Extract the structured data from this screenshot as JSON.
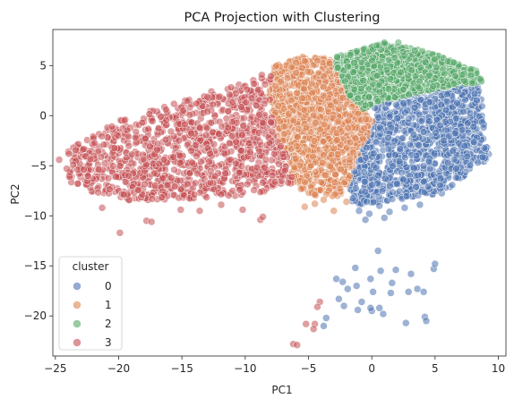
{
  "chart_data": {
    "type": "scatter",
    "title": "PCA Projection with Clustering",
    "xlabel": "PC1",
    "ylabel": "PC2",
    "xlim": [
      -25.2,
      10.6
    ],
    "ylim": [
      -24.0,
      8.6
    ],
    "xticks": [
      -25,
      -20,
      -15,
      -10,
      -5,
      0,
      5,
      10
    ],
    "yticks": [
      5,
      0,
      -5,
      -10,
      -15,
      -20
    ],
    "grid": false,
    "legend": {
      "title": "cluster",
      "placement": "lower-left"
    },
    "series": [
      {
        "name": "0",
        "color": "#4c72b0",
        "region": [
          [
            0.2,
            1.6
          ],
          [
            6.5,
            3.2
          ],
          [
            8.5,
            3.0
          ],
          [
            9.3,
            -4.2
          ],
          [
            5.5,
            -7.8
          ],
          [
            3.0,
            -8.2
          ],
          [
            -1.5,
            -9.0
          ],
          [
            -1.8,
            -7.0
          ],
          [
            -0.5,
            -2.5
          ],
          [
            0.2,
            -0.5
          ]
        ],
        "outliers": [
          [
            -1.0,
            -9.5
          ],
          [
            -0.2,
            -9.8
          ],
          [
            0.6,
            -9.0
          ],
          [
            1.4,
            -9.6
          ],
          [
            2.6,
            -9.2
          ],
          [
            3.8,
            -8.9
          ],
          [
            -0.5,
            -10.4
          ],
          [
            1.0,
            -10.2
          ],
          [
            0.5,
            -13.5
          ],
          [
            -1.3,
            -15.2
          ],
          [
            0.7,
            -15.5
          ],
          [
            -0.1,
            -16.3
          ],
          [
            1.9,
            -15.4
          ],
          [
            1.6,
            -16.7
          ],
          [
            3.1,
            -15.8
          ],
          [
            4.9,
            -15.3
          ],
          [
            5.0,
            -14.8
          ],
          [
            -2.3,
            -16.6
          ],
          [
            -2.8,
            -16.3
          ],
          [
            -1.9,
            -17.3
          ],
          [
            -1.2,
            -17.0
          ],
          [
            0.1,
            -17.6
          ],
          [
            1.5,
            -17.7
          ],
          [
            3.6,
            -17.3
          ],
          [
            4.1,
            -17.6
          ],
          [
            -2.2,
            -19.0
          ],
          [
            -1.1,
            -19.4
          ],
          [
            0.0,
            -19.5
          ],
          [
            0.9,
            -19.8
          ],
          [
            -0.8,
            -18.6
          ],
          [
            2.7,
            -20.7
          ],
          [
            4.2,
            -20.1
          ],
          [
            4.3,
            -20.5
          ],
          [
            -3.6,
            -20.2
          ],
          [
            -3.8,
            -21.0
          ],
          [
            -0.1,
            -19.2
          ],
          [
            2.9,
            -17.6
          ],
          [
            0.6,
            -19.2
          ],
          [
            -2.6,
            -18.3
          ]
        ]
      },
      {
        "name": "1",
        "color": "#dd8452",
        "region": [
          [
            -7.8,
            5.1
          ],
          [
            -5.5,
            5.9
          ],
          [
            -3.2,
            5.8
          ],
          [
            -2.4,
            3.8
          ],
          [
            -1.8,
            2.1
          ],
          [
            -0.6,
            0.6
          ],
          [
            0.1,
            -0.6
          ],
          [
            -0.7,
            -3.0
          ],
          [
            -2.0,
            -7.0
          ],
          [
            -2.6,
            -8.1
          ],
          [
            -4.8,
            -8.0
          ],
          [
            -6.2,
            -6.8
          ],
          [
            -6.5,
            -4.5
          ],
          [
            -7.5,
            -2.0
          ],
          [
            -8.1,
            2.0
          ]
        ],
        "outliers": [
          [
            -3.0,
            -9.5
          ],
          [
            -2.0,
            -8.6
          ],
          [
            -4.5,
            -8.8
          ],
          [
            -3.8,
            -8.4
          ],
          [
            -5.3,
            -9.1
          ]
        ]
      },
      {
        "name": "2",
        "color": "#55a868",
        "region": [
          [
            -3.2,
            5.8
          ],
          [
            -1.2,
            6.5
          ],
          [
            0.8,
            7.2
          ],
          [
            3.0,
            6.8
          ],
          [
            5.8,
            5.8
          ],
          [
            7.2,
            5.0
          ],
          [
            8.3,
            4.6
          ],
          [
            8.8,
            3.3
          ],
          [
            6.6,
            3.1
          ],
          [
            0.2,
            1.3
          ],
          [
            -0.6,
            0.6
          ],
          [
            -1.8,
            2.1
          ],
          [
            -2.4,
            3.8
          ]
        ],
        "outliers": [
          [
            1.0,
            7.3
          ],
          [
            2.1,
            7.3
          ],
          [
            0.4,
            7.0
          ],
          [
            3.4,
            6.5
          ]
        ]
      },
      {
        "name": "3",
        "color": "#c44e52",
        "region": [
          [
            -24.0,
            -3.2
          ],
          [
            -20.0,
            -0.5
          ],
          [
            -17.0,
            0.7
          ],
          [
            -12.5,
            2.5
          ],
          [
            -10.0,
            3.3
          ],
          [
            -8.3,
            4.5
          ],
          [
            -7.8,
            5.1
          ],
          [
            -8.1,
            2.0
          ],
          [
            -7.5,
            -2.0
          ],
          [
            -6.5,
            -4.5
          ],
          [
            -6.2,
            -6.8
          ],
          [
            -7.8,
            -7.5
          ],
          [
            -12.0,
            -8.2
          ],
          [
            -16.0,
            -8.4
          ],
          [
            -19.0,
            -8.5
          ],
          [
            -22.0,
            -7.8
          ],
          [
            -24.0,
            -6.5
          ]
        ],
        "outliers": [
          [
            -19.9,
            -11.7
          ],
          [
            -17.8,
            -10.5
          ],
          [
            -17.4,
            -10.6
          ],
          [
            -15.1,
            -9.4
          ],
          [
            -13.6,
            -9.5
          ],
          [
            -10.2,
            -9.4
          ],
          [
            -8.8,
            -10.4
          ],
          [
            -8.6,
            -10.1
          ],
          [
            -4.1,
            -18.6
          ],
          [
            -4.3,
            -19.1
          ],
          [
            -4.5,
            -20.8
          ],
          [
            -5.2,
            -20.8
          ],
          [
            -4.6,
            -21.3
          ],
          [
            -6.2,
            -22.8
          ],
          [
            -5.9,
            -22.9
          ],
          [
            -21.3,
            -9.2
          ],
          [
            -24.7,
            -4.4
          ],
          [
            -24.1,
            -5.3
          ],
          [
            -11.9,
            -8.9
          ]
        ]
      }
    ]
  }
}
